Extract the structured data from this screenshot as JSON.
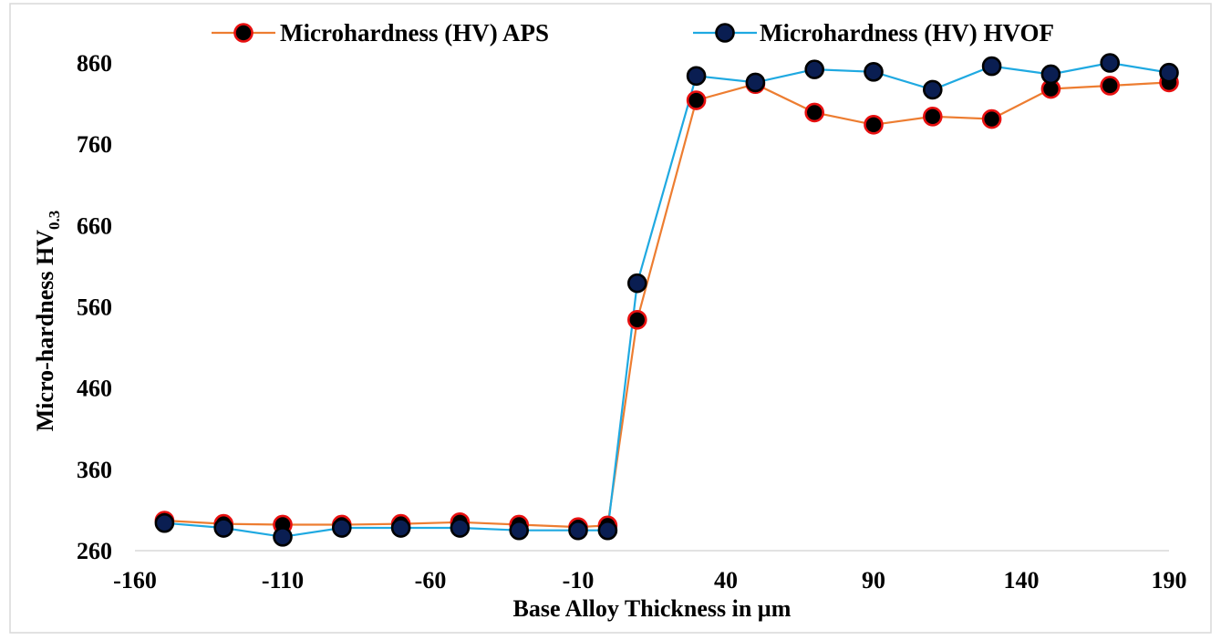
{
  "chart_data": {
    "type": "line",
    "title": "",
    "xlabel": "Base Alloy Thickness in µm",
    "ylabel": "Micro-hardness HV",
    "ylabel_subscript": "0.3",
    "xlim": [
      -160,
      190
    ],
    "ylim": [
      260,
      860
    ],
    "xticks": [
      -160,
      -110,
      -60,
      -10,
      40,
      90,
      140,
      190
    ],
    "yticks": [
      260,
      360,
      460,
      560,
      660,
      760,
      860
    ],
    "xtick_labels": [
      "-160",
      "-110",
      "-60",
      "-10",
      "40",
      "90",
      "140",
      "190"
    ],
    "ytick_labels": [
      "260",
      "360",
      "460",
      "560",
      "660",
      "760",
      "860"
    ],
    "legend_position": "top",
    "series": [
      {
        "name": "Microhardness (HV) APS",
        "line_color": "#ED7D31",
        "marker_fill": "#000000",
        "marker_edge": "#E81010",
        "x": [
          -150,
          -130,
          -110,
          -90,
          -70,
          -50,
          -30,
          -10,
          0,
          10,
          30,
          50,
          70,
          90,
          110,
          130,
          150,
          170,
          190
        ],
        "y": [
          297,
          293,
          292,
          292,
          293,
          295,
          292,
          289,
          291,
          544,
          814,
          834,
          799,
          784,
          794,
          791,
          828,
          832,
          836
        ]
      },
      {
        "name": "Microhardness (HV) HVOF",
        "line_color": "#1FA9E1",
        "marker_fill": "#0A1E52",
        "marker_edge": "#000000",
        "x": [
          -150,
          -130,
          -110,
          -90,
          -70,
          -50,
          -30,
          -10,
          0,
          10,
          30,
          50,
          70,
          90,
          110,
          130,
          150,
          170,
          190
        ],
        "y": [
          294,
          288,
          277,
          288,
          288,
          288,
          285,
          285,
          285,
          589,
          844,
          836,
          852,
          849,
          827,
          856,
          846,
          860,
          848
        ]
      }
    ]
  }
}
